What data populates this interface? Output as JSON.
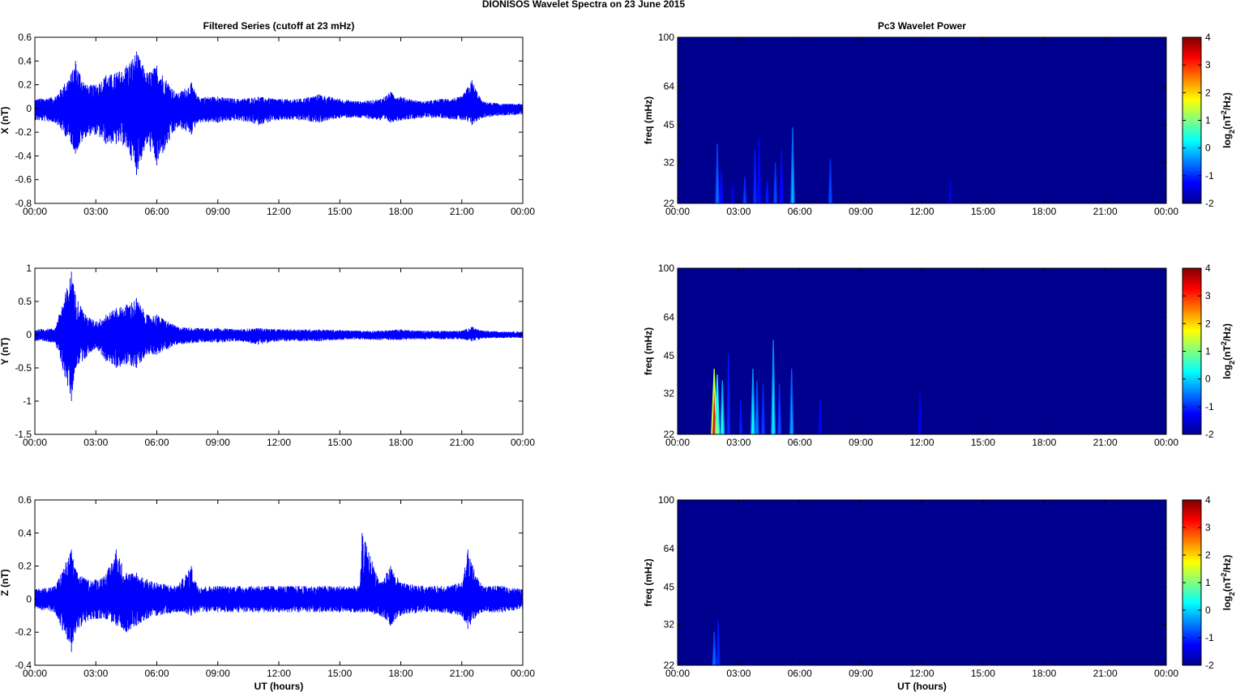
{
  "figure_title": "DIONISOS Wavelet Spectra on 23 June      2015",
  "colors": {
    "trace": "#0000ff",
    "background_power": "#00008f",
    "frame": "#000000"
  },
  "chart_data": [
    {
      "type": "line",
      "title": "Filtered Series (cutoff at 23 mHz)",
      "ylabel": "X (nT)",
      "xlabel": "",
      "xlim": [
        0,
        24
      ],
      "ylim": [
        -0.8,
        0.6
      ],
      "x_tick_labels": [
        "00:00",
        "03:00",
        "06:00",
        "09:00",
        "12:00",
        "15:00",
        "18:00",
        "21:00",
        "00:00"
      ],
      "y_tick_labels": [
        "0.6",
        "0.4",
        "0.2",
        "0",
        "-0.2",
        "-0.4",
        "-0.6",
        "-0.8"
      ],
      "y_ticks": [
        0.6,
        0.4,
        0.2,
        0,
        -0.2,
        -0.4,
        -0.6,
        -0.8
      ],
      "envelope": {
        "x": [
          0,
          1,
          1.8,
          2,
          2.5,
          3,
          3.5,
          4,
          4.5,
          5,
          5.5,
          6,
          7,
          7.7,
          8,
          9,
          10,
          11,
          12,
          13,
          14,
          15,
          16,
          17,
          17.5,
          18,
          19,
          20,
          21,
          21.5,
          22,
          23,
          24
        ],
        "upper": [
          0.08,
          0.1,
          0.3,
          0.4,
          0.2,
          0.2,
          0.28,
          0.3,
          0.36,
          0.48,
          0.3,
          0.36,
          0.12,
          0.22,
          0.1,
          0.1,
          0.08,
          0.1,
          0.08,
          0.08,
          0.12,
          0.08,
          0.06,
          0.08,
          0.14,
          0.1,
          0.06,
          0.08,
          0.1,
          0.24,
          0.06,
          0.04,
          0.04
        ],
        "lower": [
          -0.1,
          -0.12,
          -0.3,
          -0.38,
          -0.24,
          -0.22,
          -0.3,
          -0.3,
          -0.32,
          -0.56,
          -0.3,
          -0.48,
          -0.16,
          -0.22,
          -0.12,
          -0.12,
          -0.1,
          -0.14,
          -0.1,
          -0.1,
          -0.12,
          -0.08,
          -0.08,
          -0.1,
          -0.12,
          -0.1,
          -0.08,
          -0.08,
          -0.1,
          -0.14,
          -0.08,
          -0.06,
          -0.05
        ]
      }
    },
    {
      "type": "line",
      "title": "",
      "ylabel": "Y (nT)",
      "xlabel": "",
      "xlim": [
        0,
        24
      ],
      "ylim": [
        -1.5,
        1
      ],
      "x_tick_labels": [
        "00:00",
        "03:00",
        "06:00",
        "09:00",
        "12:00",
        "15:00",
        "18:00",
        "21:00",
        "00:00"
      ],
      "y_tick_labels": [
        "1",
        "0.5",
        "0",
        "-0.5",
        "-1",
        "-1.5"
      ],
      "y_ticks": [
        1,
        0.5,
        0,
        -0.5,
        -1,
        -1.5
      ],
      "envelope": {
        "x": [
          0,
          1,
          1.8,
          2,
          2.5,
          3,
          3.5,
          4,
          4.5,
          5,
          5.5,
          6,
          7,
          8,
          9,
          10,
          11,
          12,
          13,
          14,
          15,
          16,
          17,
          18,
          19,
          20,
          21,
          21.5,
          22,
          23,
          24
        ],
        "upper": [
          0.08,
          0.1,
          0.95,
          0.6,
          0.3,
          0.2,
          0.3,
          0.4,
          0.45,
          0.55,
          0.3,
          0.3,
          0.12,
          0.1,
          0.1,
          0.08,
          0.1,
          0.08,
          0.08,
          0.08,
          0.07,
          0.06,
          0.06,
          0.08,
          0.06,
          0.06,
          0.06,
          0.12,
          0.06,
          0.05,
          0.05
        ],
        "lower": [
          -0.1,
          -0.12,
          -1.0,
          -0.5,
          -0.35,
          -0.2,
          -0.4,
          -0.5,
          -0.45,
          -0.5,
          -0.3,
          -0.3,
          -0.15,
          -0.12,
          -0.12,
          -0.1,
          -0.15,
          -0.1,
          -0.1,
          -0.1,
          -0.08,
          -0.07,
          -0.08,
          -0.08,
          -0.07,
          -0.07,
          -0.07,
          -0.1,
          -0.06,
          -0.05,
          -0.05
        ]
      }
    },
    {
      "type": "line",
      "title": "",
      "ylabel": "Z (nT)",
      "xlabel": "UT (hours)",
      "xlim": [
        0,
        24
      ],
      "ylim": [
        -0.4,
        0.6
      ],
      "x_tick_labels": [
        "00:00",
        "03:00",
        "06:00",
        "09:00",
        "12:00",
        "15:00",
        "18:00",
        "21:00",
        "00:00"
      ],
      "y_tick_labels": [
        "0.6",
        "0.4",
        "0.2",
        "0",
        "-0.2",
        "-0.4"
      ],
      "y_ticks": [
        0.6,
        0.4,
        0.2,
        0,
        -0.2,
        -0.4
      ],
      "envelope": {
        "x": [
          0,
          1,
          1.8,
          2,
          2.5,
          3,
          3.5,
          4,
          4.5,
          5,
          5.5,
          6,
          7,
          7.7,
          8,
          9,
          10,
          11,
          12,
          13,
          14,
          15,
          16,
          16.1,
          17,
          17.5,
          18,
          19,
          20,
          21,
          21.3,
          21.6,
          22,
          23,
          24
        ],
        "upper": [
          0.06,
          0.08,
          0.3,
          0.18,
          0.12,
          0.12,
          0.15,
          0.3,
          0.16,
          0.16,
          0.12,
          0.1,
          0.08,
          0.2,
          0.08,
          0.08,
          0.08,
          0.08,
          0.08,
          0.08,
          0.08,
          0.08,
          0.08,
          0.4,
          0.1,
          0.2,
          0.1,
          0.08,
          0.08,
          0.1,
          0.3,
          0.18,
          0.08,
          0.08,
          0.06
        ],
        "lower": [
          -0.06,
          -0.08,
          -0.32,
          -0.2,
          -0.14,
          -0.12,
          -0.12,
          -0.16,
          -0.2,
          -0.16,
          -0.12,
          -0.1,
          -0.08,
          -0.1,
          -0.08,
          -0.08,
          -0.08,
          -0.08,
          -0.08,
          -0.08,
          -0.08,
          -0.08,
          -0.08,
          -0.08,
          -0.1,
          -0.16,
          -0.1,
          -0.08,
          -0.08,
          -0.1,
          -0.18,
          -0.12,
          -0.08,
          -0.08,
          -0.06
        ]
      }
    },
    {
      "type": "heatmap",
      "title": "Pc3 Wavelet Power",
      "ylabel": "freq (mHz)",
      "xlabel": "",
      "xlim": [
        0,
        24
      ],
      "ylim": [
        22,
        100
      ],
      "x_tick_labels": [
        "00:00",
        "03:00",
        "06:00",
        "09:00",
        "12:00",
        "15:00",
        "18:00",
        "21:00",
        "00:00"
      ],
      "y_tick_labels": [
        "100",
        "64",
        "45",
        "32",
        "22"
      ],
      "y_ticks": [
        100,
        64,
        45,
        32,
        22
      ],
      "colorbar": {
        "label": "log2(nT2/Hz)",
        "range": [
          -2,
          4
        ],
        "tick_labels": [
          "4",
          "3",
          "2",
          "1",
          "0",
          "-1",
          "-2"
        ],
        "ticks": [
          4,
          3,
          2,
          1,
          0,
          -1,
          -2
        ]
      },
      "background_value": -2,
      "features": [
        {
          "t": 1.95,
          "fmax": 38,
          "value": -0.6
        },
        {
          "t": 2.15,
          "fmax": 30,
          "value": -1.2
        },
        {
          "t": 2.7,
          "fmax": 26,
          "value": -1.3
        },
        {
          "t": 3.3,
          "fmax": 28,
          "value": -0.9
        },
        {
          "t": 3.8,
          "fmax": 36,
          "value": -1.0
        },
        {
          "t": 4.0,
          "fmax": 40,
          "value": -1.2
        },
        {
          "t": 4.4,
          "fmax": 27,
          "value": -1.1
        },
        {
          "t": 4.8,
          "fmax": 32,
          "value": -0.8
        },
        {
          "t": 5.1,
          "fmax": 36,
          "value": -1.2
        },
        {
          "t": 5.65,
          "fmax": 44,
          "value": -0.2
        },
        {
          "t": 7.5,
          "fmax": 33,
          "value": -0.8
        },
        {
          "t": 13.4,
          "fmax": 27,
          "value": -1.5
        }
      ]
    },
    {
      "type": "heatmap",
      "title": "",
      "ylabel": "freq (mHz)",
      "xlabel": "",
      "xlim": [
        0,
        24
      ],
      "ylim": [
        22,
        100
      ],
      "x_tick_labels": [
        "00:00",
        "03:00",
        "06:00",
        "09:00",
        "12:00",
        "15:00",
        "18:00",
        "21:00",
        "00:00"
      ],
      "y_tick_labels": [
        "100",
        "64",
        "45",
        "32",
        "22"
      ],
      "y_ticks": [
        100,
        64,
        45,
        32,
        22
      ],
      "colorbar": {
        "label": "log2(nT2/Hz)",
        "range": [
          -2,
          4
        ],
        "tick_labels": [
          "4",
          "3",
          "2",
          "1",
          "0",
          "-1",
          "-2"
        ],
        "ticks": [
          4,
          3,
          2,
          1,
          0,
          -1,
          -2
        ]
      },
      "background_value": -2,
      "features": [
        {
          "t": 1.8,
          "fmax": 40,
          "value": 3.2
        },
        {
          "t": 1.95,
          "fmax": 38,
          "value": 1.2
        },
        {
          "t": 2.2,
          "fmax": 36,
          "value": 0.4
        },
        {
          "t": 2.5,
          "fmax": 46,
          "value": -1.0
        },
        {
          "t": 3.1,
          "fmax": 30,
          "value": -1.1
        },
        {
          "t": 3.7,
          "fmax": 40,
          "value": 0.3
        },
        {
          "t": 3.9,
          "fmax": 36,
          "value": -0.5
        },
        {
          "t": 4.2,
          "fmax": 35,
          "value": -0.9
        },
        {
          "t": 4.7,
          "fmax": 52,
          "value": 0.2
        },
        {
          "t": 5.0,
          "fmax": 35,
          "value": -0.8
        },
        {
          "t": 5.6,
          "fmax": 40,
          "value": -0.3
        },
        {
          "t": 7.0,
          "fmax": 30,
          "value": -1.3
        },
        {
          "t": 11.9,
          "fmax": 32,
          "value": -1.4
        }
      ]
    },
    {
      "type": "heatmap",
      "title": "",
      "ylabel": "freq (mHz)",
      "xlabel": "UT (hours)",
      "xlim": [
        0,
        24
      ],
      "ylim": [
        22,
        100
      ],
      "x_tick_labels": [
        "00:00",
        "03:00",
        "06:00",
        "09:00",
        "12:00",
        "15:00",
        "18:00",
        "21:00",
        "00:00"
      ],
      "y_tick_labels": [
        "100",
        "64",
        "45",
        "32",
        "22"
      ],
      "y_ticks": [
        100,
        64,
        45,
        32,
        22
      ],
      "colorbar": {
        "label": "log2(nT2/Hz)",
        "range": [
          -2,
          4
        ],
        "tick_labels": [
          "4",
          "3",
          "2",
          "1",
          "0",
          "-1",
          "-2"
        ],
        "ticks": [
          4,
          3,
          2,
          1,
          0,
          -1,
          -2
        ]
      },
      "background_value": -2,
      "features": [
        {
          "t": 1.8,
          "fmax": 30,
          "value": -0.6
        },
        {
          "t": 2.0,
          "fmax": 33,
          "value": -1.0
        }
      ]
    }
  ]
}
